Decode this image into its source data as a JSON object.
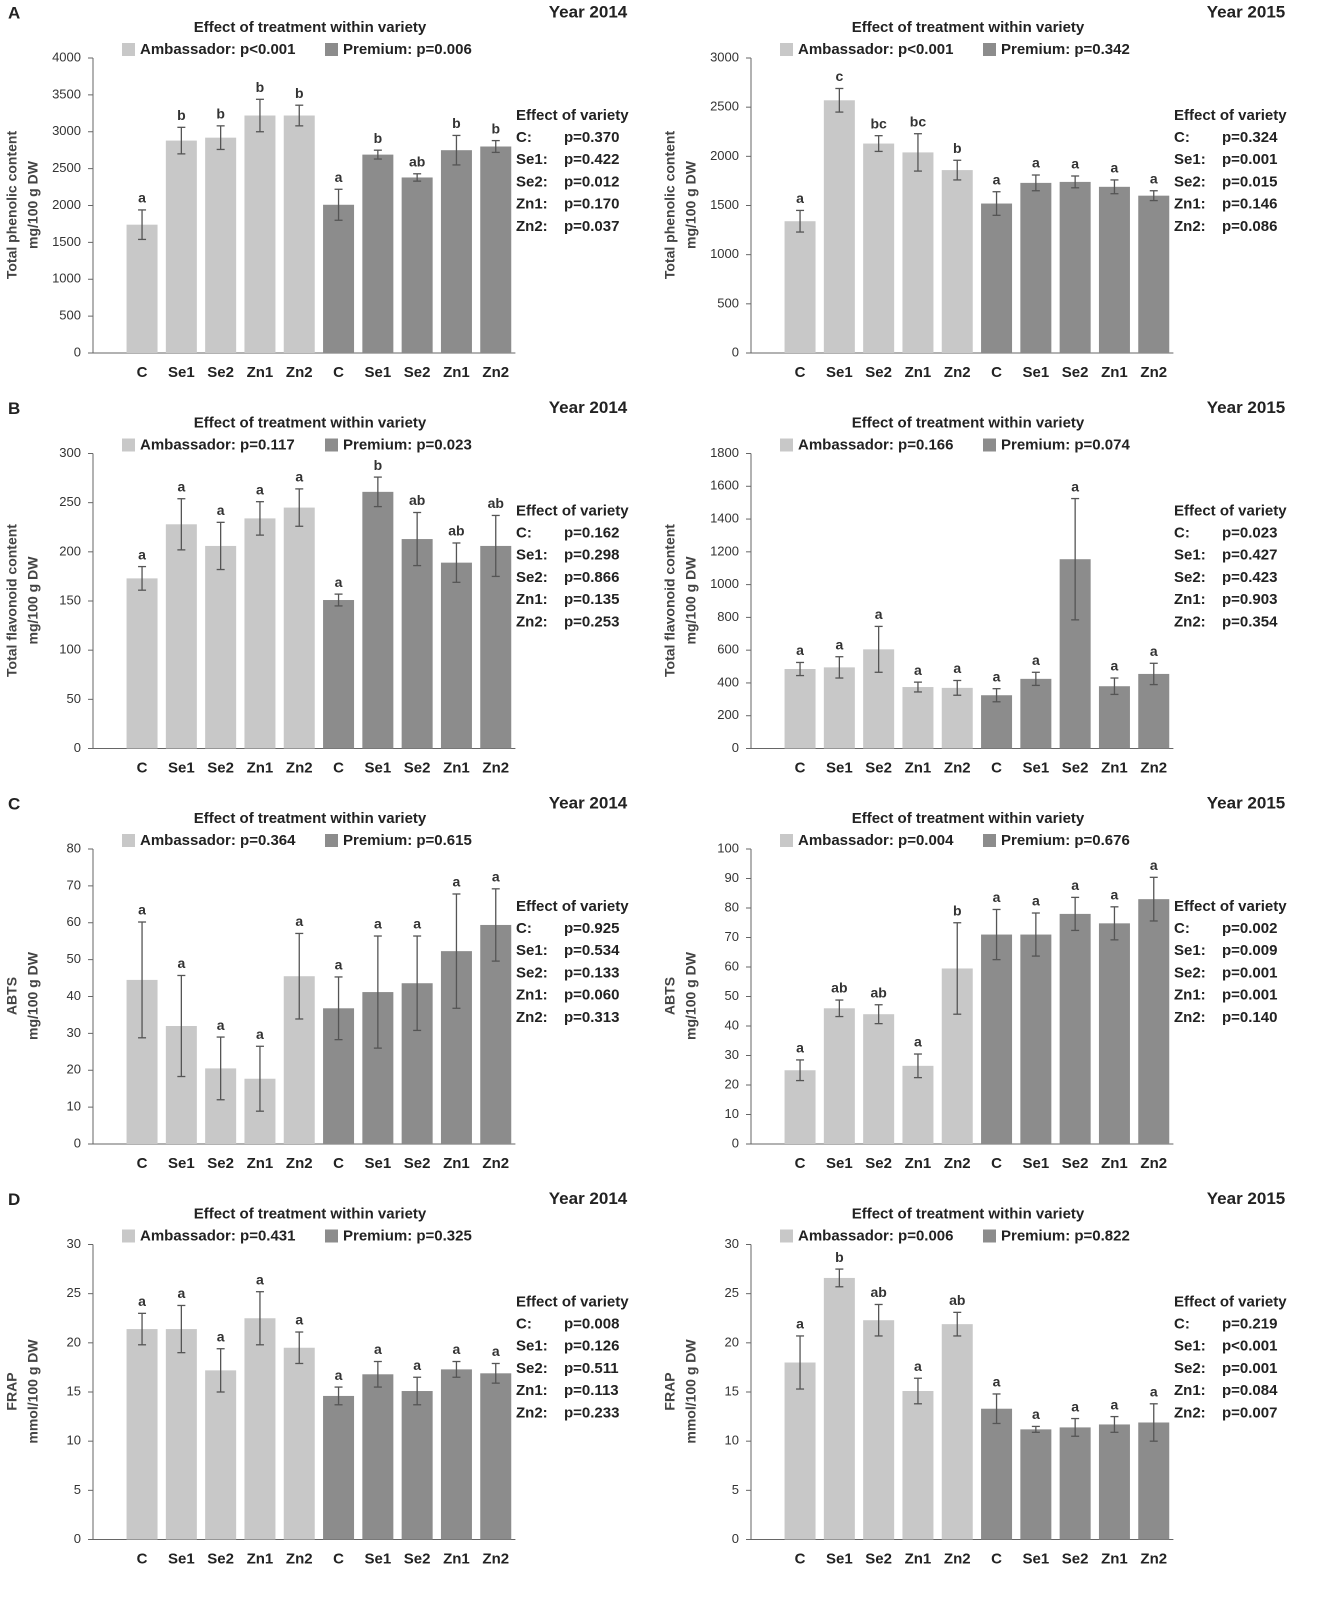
{
  "chart_data": [
    {
      "type": "bar",
      "panel": "A",
      "title": "Year 2014",
      "subtitle": "Effect of treatment within variety",
      "ylabel": [
        "Total phenolic content",
        "mg/100 g DW"
      ],
      "categories": [
        "C",
        "Se1",
        "Se2",
        "Zn1",
        "Zn2",
        "C",
        "Se1",
        "Se2",
        "Zn1",
        "Zn2"
      ],
      "series": [
        {
          "name": "Ambassador: p<0.001",
          "color": "#c8c8c8",
          "values": [
            1740,
            2880,
            2920,
            3220,
            3220,
            null,
            null,
            null,
            null,
            null
          ],
          "errors": [
            200,
            180,
            160,
            220,
            140,
            null,
            null,
            null,
            null,
            null
          ],
          "letters": [
            "a",
            "b",
            "b",
            "b",
            "b",
            null,
            null,
            null,
            null,
            null
          ]
        },
        {
          "name": "Premium: p=0.006",
          "color": "#8c8c8c",
          "values": [
            null,
            null,
            null,
            null,
            null,
            2010,
            2690,
            2380,
            2750,
            2800
          ],
          "errors": [
            null,
            null,
            null,
            null,
            null,
            210,
            60,
            50,
            200,
            80
          ],
          "letters": [
            null,
            null,
            null,
            null,
            null,
            "a",
            "b",
            "ab",
            "b",
            "b"
          ]
        }
      ],
      "ylim": [
        0,
        4000
      ],
      "yticks": [
        0,
        500,
        1000,
        1500,
        2000,
        2500,
        3000,
        3500,
        4000
      ],
      "variety_title": "Effect of variety",
      "variety": [
        [
          "C:",
          "p=0.370"
        ],
        [
          "Se1:",
          "p=0.422"
        ],
        [
          "Se2:",
          "p=0.012"
        ],
        [
          "Zn1:",
          "p=0.170"
        ],
        [
          "Zn2:",
          "p=0.037"
        ]
      ]
    },
    {
      "type": "bar",
      "title": "Year 2015",
      "subtitle": "Effect of treatment within variety",
      "ylabel": [
        "Total phenolic content",
        "mg/100 g DW"
      ],
      "categories": [
        "C",
        "Se1",
        "Se2",
        "Zn1",
        "Zn2",
        "C",
        "Se1",
        "Se2",
        "Zn1",
        "Zn2"
      ],
      "series": [
        {
          "name": "Ambassador: p<0.001",
          "color": "#c8c8c8",
          "values": [
            1340,
            2570,
            2130,
            2040,
            1860,
            null,
            null,
            null,
            null,
            null
          ],
          "errors": [
            110,
            120,
            80,
            190,
            100,
            null,
            null,
            null,
            null,
            null
          ],
          "letters": [
            "a",
            "c",
            "bc",
            "bc",
            "b",
            null,
            null,
            null,
            null,
            null
          ]
        },
        {
          "name": "Premium: p=0.342",
          "color": "#8c8c8c",
          "values": [
            null,
            null,
            null,
            null,
            null,
            1520,
            1730,
            1740,
            1690,
            1600
          ],
          "errors": [
            null,
            null,
            null,
            null,
            null,
            120,
            80,
            60,
            70,
            50
          ],
          "letters": [
            null,
            null,
            null,
            null,
            null,
            "a",
            "a",
            "a",
            "a",
            "a"
          ]
        }
      ],
      "ylim": [
        0,
        3000
      ],
      "yticks": [
        0,
        500,
        1000,
        1500,
        2000,
        2500,
        3000
      ],
      "variety_title": "Effect of variety",
      "variety": [
        [
          "C:",
          "p=0.324"
        ],
        [
          "Se1:",
          "p=0.001"
        ],
        [
          "Se2:",
          "p=0.015"
        ],
        [
          "Zn1:",
          "p=0.146"
        ],
        [
          "Zn2:",
          "p=0.086"
        ]
      ]
    },
    {
      "type": "bar",
      "panel": "B",
      "title": "Year 2014",
      "subtitle": "Effect of treatment within variety",
      "ylabel": [
        "Total flavonoid content",
        "mg/100 g DW"
      ],
      "categories": [
        "C",
        "Se1",
        "Se2",
        "Zn1",
        "Zn2",
        "C",
        "Se1",
        "Se2",
        "Zn1",
        "Zn2"
      ],
      "series": [
        {
          "name": "Ambassador: p=0.117",
          "color": "#c8c8c8",
          "values": [
            173,
            228,
            206,
            234,
            245,
            null,
            null,
            null,
            null,
            null
          ],
          "errors": [
            12,
            26,
            24,
            17,
            19,
            null,
            null,
            null,
            null,
            null
          ],
          "letters": [
            "a",
            "a",
            "a",
            "a",
            "a",
            null,
            null,
            null,
            null,
            null
          ]
        },
        {
          "name": "Premium: p=0.023",
          "color": "#8c8c8c",
          "values": [
            null,
            null,
            null,
            null,
            null,
            151,
            261,
            213,
            189,
            206
          ],
          "errors": [
            null,
            null,
            null,
            null,
            null,
            6,
            15,
            27,
            20,
            31
          ],
          "letters": [
            null,
            null,
            null,
            null,
            null,
            "a",
            "b",
            "ab",
            "ab",
            "ab"
          ]
        }
      ],
      "ylim": [
        0,
        300
      ],
      "yticks": [
        0,
        50,
        100,
        150,
        200,
        250,
        300
      ],
      "variety_title": "Effect of variety",
      "variety": [
        [
          "C:",
          "p=0.162"
        ],
        [
          "Se1:",
          "p=0.298"
        ],
        [
          "Se2:",
          "p=0.866"
        ],
        [
          "Zn1:",
          "p=0.135"
        ],
        [
          "Zn2:",
          "p=0.253"
        ]
      ]
    },
    {
      "type": "bar",
      "title": "Year 2015",
      "subtitle": "Effect of treatment within variety",
      "ylabel": [
        "Total flavonoid content",
        "mg/100 g DW"
      ],
      "categories": [
        "C",
        "Se1",
        "Se2",
        "Zn1",
        "Zn2",
        "C",
        "Se1",
        "Se2",
        "Zn1",
        "Zn2"
      ],
      "series": [
        {
          "name": "Ambassador: p=0.166",
          "color": "#c8c8c8",
          "values": [
            485,
            495,
            605,
            375,
            370,
            null,
            null,
            null,
            null,
            null
          ],
          "errors": [
            40,
            65,
            140,
            30,
            45,
            null,
            null,
            null,
            null,
            null
          ],
          "letters": [
            "a",
            "a",
            "a",
            "a",
            "a",
            null,
            null,
            null,
            null,
            null
          ]
        },
        {
          "name": "Premium: p=0.074",
          "color": "#8c8c8c",
          "values": [
            null,
            null,
            null,
            null,
            null,
            325,
            425,
            1155,
            380,
            455
          ],
          "errors": [
            null,
            null,
            null,
            null,
            null,
            40,
            40,
            370,
            50,
            65
          ],
          "letters": [
            null,
            null,
            null,
            null,
            null,
            "a",
            "a",
            "a",
            "a",
            "a"
          ]
        }
      ],
      "ylim": [
        0,
        1800
      ],
      "yticks": [
        0,
        200,
        400,
        600,
        800,
        1000,
        1200,
        1400,
        1600,
        1800
      ],
      "variety_title": "Effect of variety",
      "variety": [
        [
          "C:",
          "p=0.023"
        ],
        [
          "Se1:",
          "p=0.427"
        ],
        [
          "Se2:",
          "p=0.423"
        ],
        [
          "Zn1:",
          "p=0.903"
        ],
        [
          "Zn2:",
          "p=0.354"
        ]
      ]
    },
    {
      "type": "bar",
      "panel": "C",
      "title": "Year 2014",
      "subtitle": "Effect of treatment within variety",
      "ylabel": [
        "ABTS",
        "mg/100 g DW"
      ],
      "categories": [
        "C",
        "Se1",
        "Se2",
        "Zn1",
        "Zn2",
        "C",
        "Se1",
        "Se2",
        "Zn1",
        "Zn2"
      ],
      "series": [
        {
          "name": "Ambassador: p=0.364",
          "color": "#c8c8c8",
          "values": [
            44.5,
            32,
            20.5,
            17.7,
            45.5,
            null,
            null,
            null,
            null,
            null
          ],
          "errors": [
            15.7,
            13.7,
            8.5,
            8.8,
            11.6,
            null,
            null,
            null,
            null,
            null
          ],
          "letters": [
            "a",
            "a",
            "a",
            "a",
            "a",
            null,
            null,
            null,
            null,
            null
          ]
        },
        {
          "name": "Premium: p=0.615",
          "color": "#8c8c8c",
          "values": [
            null,
            null,
            null,
            null,
            null,
            36.8,
            41.2,
            43.6,
            52.3,
            59.4
          ],
          "errors": [
            null,
            null,
            null,
            null,
            null,
            8.5,
            15.2,
            12.8,
            15.5,
            9.8
          ],
          "letters": [
            null,
            null,
            null,
            null,
            null,
            "a",
            "a",
            "a",
            "a",
            "a"
          ]
        }
      ],
      "ylim": [
        0,
        80
      ],
      "yticks": [
        0,
        10,
        20,
        30,
        40,
        50,
        60,
        70,
        80
      ],
      "variety_title": "Effect of variety",
      "variety": [
        [
          "C:",
          "p=0.925"
        ],
        [
          "Se1:",
          "p=0.534"
        ],
        [
          "Se2:",
          "p=0.133"
        ],
        [
          "Zn1:",
          "p=0.060"
        ],
        [
          "Zn2:",
          "p=0.313"
        ]
      ]
    },
    {
      "type": "bar",
      "title": "Year 2015",
      "subtitle": "Effect of treatment within variety",
      "ylabel": [
        "ABTS",
        "mg/100 g DW"
      ],
      "categories": [
        "C",
        "Se1",
        "Se2",
        "Zn1",
        "Zn2",
        "C",
        "Se1",
        "Se2",
        "Zn1",
        "Zn2"
      ],
      "series": [
        {
          "name": "Ambassador: p=0.004",
          "color": "#c8c8c8",
          "values": [
            25,
            46,
            44,
            26.5,
            59.5,
            null,
            null,
            null,
            null,
            null
          ],
          "errors": [
            3.5,
            2.8,
            3.2,
            4,
            15.5,
            null,
            null,
            null,
            null,
            null
          ],
          "letters": [
            "a",
            "ab",
            "ab",
            "a",
            "b",
            null,
            null,
            null,
            null,
            null
          ]
        },
        {
          "name": "Premium: p=0.676",
          "color": "#8c8c8c",
          "values": [
            null,
            null,
            null,
            null,
            null,
            71,
            71,
            78,
            74.8,
            83
          ],
          "errors": [
            null,
            null,
            null,
            null,
            null,
            8.5,
            7.3,
            5.6,
            5.6,
            7.4
          ],
          "letters": [
            null,
            null,
            null,
            null,
            null,
            "a",
            "a",
            "a",
            "a",
            "a"
          ]
        }
      ],
      "ylim": [
        0,
        100
      ],
      "yticks": [
        0,
        10,
        20,
        30,
        40,
        50,
        60,
        70,
        80,
        90,
        100
      ],
      "variety_title": "Effect of variety",
      "variety": [
        [
          "C:",
          "p=0.002"
        ],
        [
          "Se1:",
          "p=0.009"
        ],
        [
          "Se2:",
          "p=0.001"
        ],
        [
          "Zn1:",
          "p=0.001"
        ],
        [
          "Zn2:",
          "p=0.140"
        ]
      ]
    },
    {
      "type": "bar",
      "panel": "D",
      "title": "Year 2014",
      "subtitle": "Effect of treatment within variety",
      "ylabel": [
        "FRAP",
        "mmol/100 g DW"
      ],
      "categories": [
        "C",
        "Se1",
        "Se2",
        "Zn1",
        "Zn2",
        "C",
        "Se1",
        "Se2",
        "Zn1",
        "Zn2"
      ],
      "series": [
        {
          "name": "Ambassador: p=0.431",
          "color": "#c8c8c8",
          "values": [
            21.4,
            21.4,
            17.2,
            22.5,
            19.5,
            null,
            null,
            null,
            null,
            null
          ],
          "errors": [
            1.6,
            2.4,
            2.2,
            2.7,
            1.6,
            null,
            null,
            null,
            null,
            null
          ],
          "letters": [
            "a",
            "a",
            "a",
            "a",
            "a",
            null,
            null,
            null,
            null,
            null
          ]
        },
        {
          "name": "Premium: p=0.325",
          "color": "#8c8c8c",
          "values": [
            null,
            null,
            null,
            null,
            null,
            14.6,
            16.8,
            15.1,
            17.3,
            16.9
          ],
          "errors": [
            null,
            null,
            null,
            null,
            null,
            0.9,
            1.3,
            1.4,
            0.8,
            1.0
          ],
          "letters": [
            null,
            null,
            null,
            null,
            null,
            "a",
            "a",
            "a",
            "a",
            "a"
          ]
        }
      ],
      "ylim": [
        0,
        30
      ],
      "yticks": [
        0,
        5,
        10,
        15,
        20,
        25,
        30
      ],
      "variety_title": "Effect of variety",
      "variety": [
        [
          "C:",
          "p=0.008"
        ],
        [
          "Se1:",
          "p=0.126"
        ],
        [
          "Se2:",
          "p=0.511"
        ],
        [
          "Zn1:",
          "p=0.113"
        ],
        [
          "Zn2:",
          "p=0.233"
        ]
      ]
    },
    {
      "type": "bar",
      "title": "Year 2015",
      "subtitle": "Effect of treatment within variety",
      "ylabel": [
        "FRAP",
        "mmol/100 g DW"
      ],
      "categories": [
        "C",
        "Se1",
        "Se2",
        "Zn1",
        "Zn2",
        "C",
        "Se1",
        "Se2",
        "Zn1",
        "Zn2"
      ],
      "series": [
        {
          "name": "Ambassador: p=0.006",
          "color": "#c8c8c8",
          "values": [
            18,
            26.6,
            22.3,
            15.1,
            21.9,
            null,
            null,
            null,
            null,
            null
          ],
          "errors": [
            2.7,
            0.9,
            1.6,
            1.3,
            1.2,
            null,
            null,
            null,
            null,
            null
          ],
          "letters": [
            "a",
            "b",
            "ab",
            "a",
            "ab",
            null,
            null,
            null,
            null,
            null
          ]
        },
        {
          "name": "Premium: p=0.822",
          "color": "#8c8c8c",
          "values": [
            null,
            null,
            null,
            null,
            null,
            13.3,
            11.2,
            11.4,
            11.7,
            11.9
          ],
          "errors": [
            null,
            null,
            null,
            null,
            null,
            1.5,
            0.3,
            0.9,
            0.8,
            1.9
          ],
          "letters": [
            null,
            null,
            null,
            null,
            null,
            "a",
            "a",
            "a",
            "a",
            "a"
          ]
        }
      ],
      "ylim": [
        0,
        30
      ],
      "yticks": [
        0,
        5,
        10,
        15,
        20,
        25,
        30
      ],
      "variety_title": "Effect of variety",
      "variety": [
        [
          "C:",
          "p=0.219"
        ],
        [
          "Se1:",
          "p<0.001"
        ],
        [
          "Se2:",
          "p=0.001"
        ],
        [
          "Zn1:",
          "p=0.084"
        ],
        [
          "Zn2:",
          "p=0.007"
        ]
      ]
    }
  ]
}
